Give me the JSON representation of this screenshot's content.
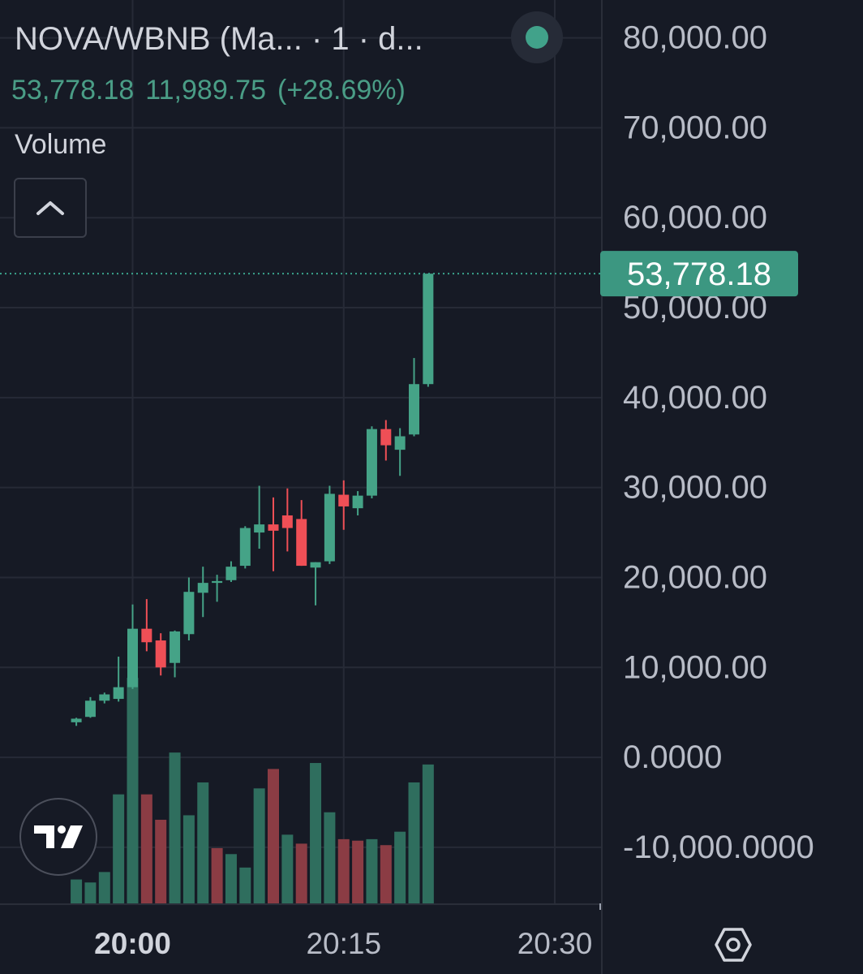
{
  "header": {
    "symbol_title": "NOVA/WBNB (Ma... · 1 · d...",
    "last_price": "53,778.18",
    "change_abs": "11,989.75",
    "change_pct": "(+28.69%)",
    "volume_label": "Volume"
  },
  "colors": {
    "background": "#161a25",
    "up": "#45a387",
    "down": "#ef4f56",
    "vol_up": "#2f6e5e",
    "vol_down": "#8b3c44",
    "grid": "#262a36",
    "axis_text": "#b8bcc7",
    "price_tag": "#3c9781"
  },
  "icons": {
    "status": "green-status-dot-icon",
    "collapse": "chevron-up-icon",
    "logo": "tradingview-logo-icon",
    "settings": "hexagon-settings-icon"
  },
  "chart_data": {
    "type": "candlestick",
    "y_ticks": [
      "80,000.00",
      "70,000.00",
      "60,000.00",
      "50,000.00",
      "40,000.00",
      "30,000.00",
      "20,000.00",
      "10,000.00",
      "0.0000",
      "-10,000.0000"
    ],
    "ylim": [
      -17500,
      81500
    ],
    "x_ticks": [
      {
        "label": "20:00",
        "t": 0,
        "bold": true
      },
      {
        "label": "20:15",
        "t": 15,
        "bold": false
      },
      {
        "label": "20:30",
        "t": 30,
        "bold": false
      }
    ],
    "current_price": 53778.18,
    "current_price_label": "53,778.18",
    "candles": [
      {
        "t": -4,
        "o": 3900,
        "h": 4400,
        "l": 3500,
        "c": 4300
      },
      {
        "t": -3,
        "o": 4500,
        "h": 6700,
        "l": 4400,
        "c": 6300
      },
      {
        "t": -2,
        "o": 6300,
        "h": 7200,
        "l": 6000,
        "c": 7000
      },
      {
        "t": -1,
        "o": 6500,
        "h": 11200,
        "l": 6200,
        "c": 7800
      },
      {
        "t": 0,
        "o": 7800,
        "h": 17000,
        "l": 7600,
        "c": 14300
      },
      {
        "t": 1,
        "o": 14300,
        "h": 17600,
        "l": 11800,
        "c": 12800
      },
      {
        "t": 2,
        "o": 13000,
        "h": 13800,
        "l": 9100,
        "c": 10000
      },
      {
        "t": 3,
        "o": 10500,
        "h": 14100,
        "l": 8900,
        "c": 14000
      },
      {
        "t": 4,
        "o": 13700,
        "h": 20000,
        "l": 13000,
        "c": 18400
      },
      {
        "t": 5,
        "o": 18300,
        "h": 21200,
        "l": 15600,
        "c": 19400
      },
      {
        "t": 6,
        "o": 19400,
        "h": 20300,
        "l": 17300,
        "c": 19600
      },
      {
        "t": 7,
        "o": 19700,
        "h": 21800,
        "l": 19500,
        "c": 21200
      },
      {
        "t": 8,
        "o": 21300,
        "h": 25700,
        "l": 21000,
        "c": 25500
      },
      {
        "t": 9,
        "o": 25000,
        "h": 30200,
        "l": 23200,
        "c": 25900
      },
      {
        "t": 10,
        "o": 25900,
        "h": 28900,
        "l": 20700,
        "c": 25200
      },
      {
        "t": 11,
        "o": 26900,
        "h": 29900,
        "l": 22900,
        "c": 25500
      },
      {
        "t": 12,
        "o": 26500,
        "h": 28600,
        "l": 21300,
        "c": 21300
      },
      {
        "t": 13,
        "o": 21100,
        "h": 21700,
        "l": 16900,
        "c": 21700
      },
      {
        "t": 14,
        "o": 21800,
        "h": 30200,
        "l": 21500,
        "c": 29300
      },
      {
        "t": 15,
        "o": 29200,
        "h": 30800,
        "l": 25300,
        "c": 27900
      },
      {
        "t": 16,
        "o": 27700,
        "h": 29600,
        "l": 26900,
        "c": 29100
      },
      {
        "t": 17,
        "o": 29100,
        "h": 36800,
        "l": 28800,
        "c": 36500
      },
      {
        "t": 18,
        "o": 36500,
        "h": 37500,
        "l": 33000,
        "c": 34700
      },
      {
        "t": 19,
        "o": 34200,
        "h": 36600,
        "l": 31300,
        "c": 35700
      },
      {
        "t": 20,
        "o": 35900,
        "h": 44400,
        "l": 35700,
        "c": 41500
      },
      {
        "t": 21,
        "o": 41500,
        "h": 53778.18,
        "l": 41200,
        "c": 53778.18
      }
    ],
    "volume_max": 100,
    "volumes": [
      {
        "t": -4,
        "v": 16,
        "dir": "up"
      },
      {
        "t": -3,
        "v": 14,
        "dir": "up"
      },
      {
        "t": -2,
        "v": 21,
        "dir": "up"
      },
      {
        "t": -1,
        "v": 73,
        "dir": "up"
      },
      {
        "t": 0,
        "v": 151,
        "dir": "up"
      },
      {
        "t": 1,
        "v": 73,
        "dir": "down"
      },
      {
        "t": 2,
        "v": 56,
        "dir": "down"
      },
      {
        "t": 3,
        "v": 101,
        "dir": "up"
      },
      {
        "t": 4,
        "v": 59,
        "dir": "up"
      },
      {
        "t": 5,
        "v": 81,
        "dir": "up"
      },
      {
        "t": 6,
        "v": 37,
        "dir": "down"
      },
      {
        "t": 7,
        "v": 33,
        "dir": "up"
      },
      {
        "t": 8,
        "v": 24,
        "dir": "up"
      },
      {
        "t": 9,
        "v": 77,
        "dir": "up"
      },
      {
        "t": 10,
        "v": 90,
        "dir": "down"
      },
      {
        "t": 11,
        "v": 46,
        "dir": "up"
      },
      {
        "t": 12,
        "v": 40,
        "dir": "down"
      },
      {
        "t": 13,
        "v": 94,
        "dir": "up"
      },
      {
        "t": 14,
        "v": 61,
        "dir": "up"
      },
      {
        "t": 15,
        "v": 43,
        "dir": "down"
      },
      {
        "t": 16,
        "v": 42,
        "dir": "down"
      },
      {
        "t": 17,
        "v": 43,
        "dir": "up"
      },
      {
        "t": 18,
        "v": 39,
        "dir": "down"
      },
      {
        "t": 19,
        "v": 48,
        "dir": "up"
      },
      {
        "t": 20,
        "v": 81,
        "dir": "up"
      },
      {
        "t": 21,
        "v": 93,
        "dir": "up"
      }
    ]
  }
}
